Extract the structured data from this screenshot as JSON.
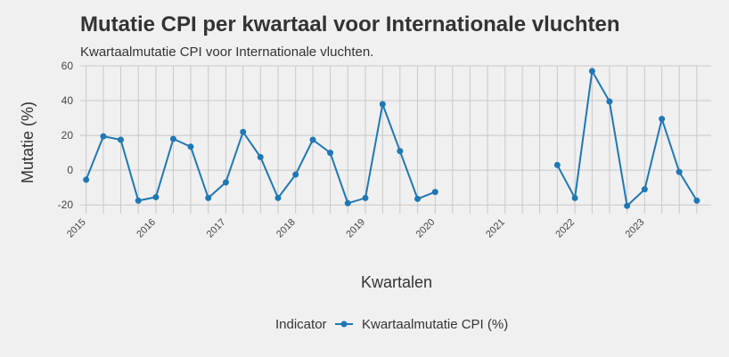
{
  "chart_data": {
    "type": "line",
    "title": "Mutatie CPI per kwartaal voor Internationale vluchten",
    "subtitle": "Kwartaalmutatie CPI voor Internationale vluchten.",
    "xlabel": "Kwartalen",
    "ylabel": "Mutatie (%)",
    "ylim": [
      -25,
      60
    ],
    "yticks": [
      -20,
      0,
      20,
      40,
      60
    ],
    "xticks": [
      "2015",
      "2016",
      "2017",
      "2018",
      "2019",
      "2020",
      "2021",
      "2022",
      "2023"
    ],
    "grid": true,
    "legend": {
      "title": "Indicator",
      "position": "bottom"
    },
    "series_color": "#1f77b4",
    "series": [
      {
        "name": "Kwartaalmutatie CPI (%)",
        "points": [
          {
            "x": "2015-01-01",
            "y": -5.5
          },
          {
            "x": "2015-04-01",
            "y": 19.5
          },
          {
            "x": "2015-07-01",
            "y": 17.5
          },
          {
            "x": "2015-10-01",
            "y": -17.5
          },
          {
            "x": "2016-01-01",
            "y": -15.5
          },
          {
            "x": "2016-04-01",
            "y": 18.0
          },
          {
            "x": "2016-07-01",
            "y": 13.5
          },
          {
            "x": "2016-10-01",
            "y": -16.0
          },
          {
            "x": "2017-01-01",
            "y": -7.0
          },
          {
            "x": "2017-04-01",
            "y": 22.0
          },
          {
            "x": "2017-07-01",
            "y": 7.5
          },
          {
            "x": "2017-10-01",
            "y": -16.0
          },
          {
            "x": "2018-01-01",
            "y": -2.5
          },
          {
            "x": "2018-04-01",
            "y": 17.5
          },
          {
            "x": "2018-07-01",
            "y": 10.0
          },
          {
            "x": "2018-10-01",
            "y": -19.0
          },
          {
            "x": "2019-01-01",
            "y": -16.0
          },
          {
            "x": "2019-04-01",
            "y": 38.0
          },
          {
            "x": "2019-07-01",
            "y": 11.0
          },
          {
            "x": "2019-10-01",
            "y": -16.5
          },
          {
            "x": "2020-01-01",
            "y": -12.5
          },
          {
            "x": "2021-10-01",
            "y": 3.0
          },
          {
            "x": "2022-01-01",
            "y": -16.0
          },
          {
            "x": "2022-04-01",
            "y": 57.0
          },
          {
            "x": "2022-07-01",
            "y": 39.5
          },
          {
            "x": "2022-10-01",
            "y": -20.5
          },
          {
            "x": "2023-01-01",
            "y": -11.0
          },
          {
            "x": "2023-04-01",
            "y": 29.5
          },
          {
            "x": "2023-07-01",
            "y": -1.0
          },
          {
            "x": "2023-10-01",
            "y": -17.5
          }
        ]
      }
    ]
  }
}
